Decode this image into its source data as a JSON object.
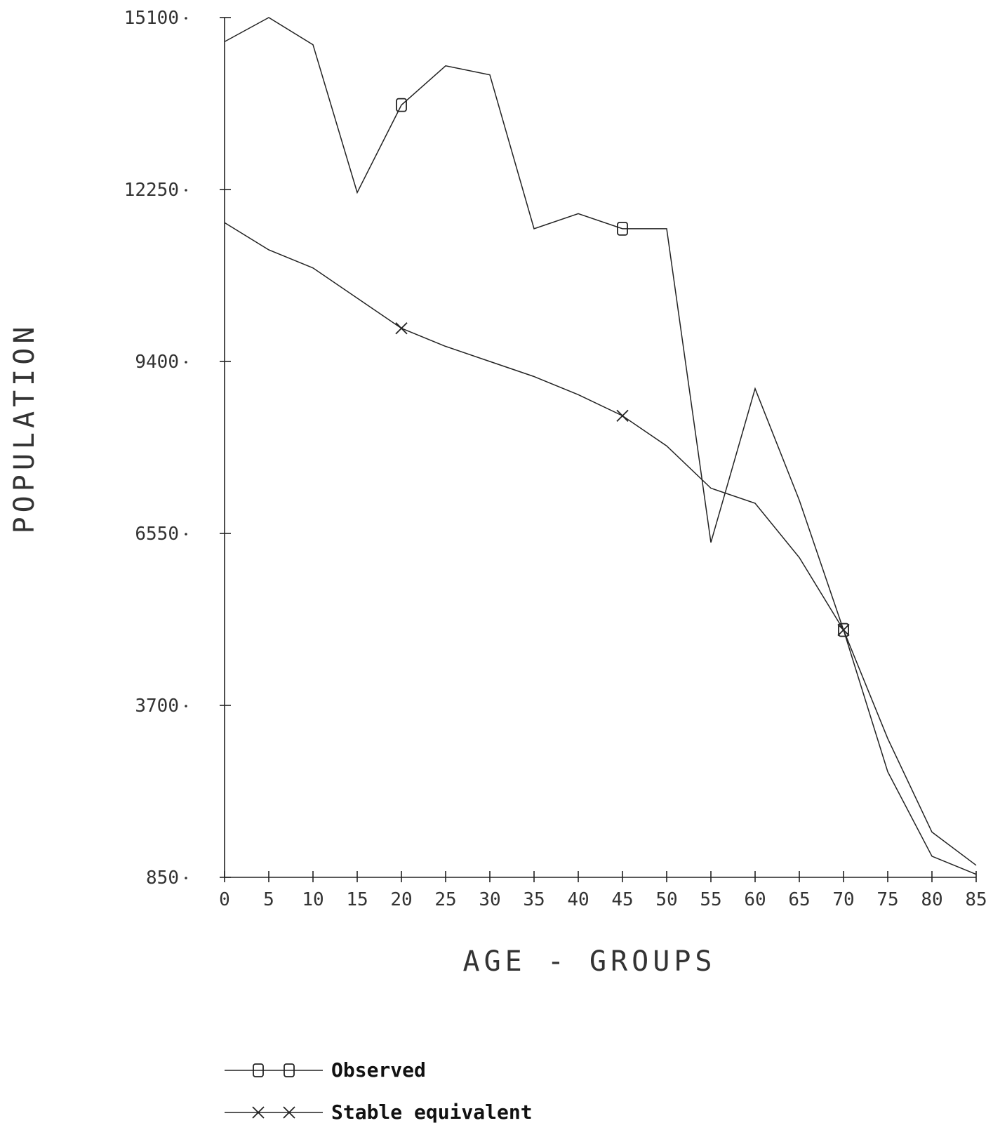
{
  "chart_data": {
    "type": "line",
    "title": "",
    "xlabel": "AGE - GROUPS",
    "ylabel": "POPULATION",
    "x": [
      0,
      5,
      10,
      15,
      20,
      25,
      30,
      35,
      40,
      45,
      50,
      55,
      60,
      65,
      70,
      75,
      80,
      85
    ],
    "x_ticks": [
      "0",
      "5",
      "10",
      "15",
      "20",
      "25",
      "30",
      "35",
      "40",
      "45",
      "50",
      "55",
      "60",
      "65",
      "70",
      "75",
      "80",
      "85"
    ],
    "y_ticks": [
      "15100",
      "12250",
      "9400",
      "6550",
      "3700",
      "850"
    ],
    "xlim": [
      0,
      85
    ],
    "ylim": [
      850,
      15100
    ],
    "grid": false,
    "legend_position": "bottom-left",
    "series": [
      {
        "name": "Observed",
        "marker": "square",
        "marker_at": [
          20,
          45,
          70
        ],
        "values": [
          14700,
          15100,
          14650,
          12200,
          13650,
          14300,
          14150,
          11600,
          11850,
          11600,
          11600,
          6400,
          8950,
          7100,
          4950,
          2600,
          1200,
          900
        ]
      },
      {
        "name": "Stable equivalent",
        "marker": "x",
        "marker_at": [
          20,
          45,
          70
        ],
        "values": [
          11700,
          11250,
          10950,
          10450,
          9950,
          9650,
          9400,
          9150,
          8850,
          8500,
          8000,
          7300,
          7050,
          6150,
          4950,
          3150,
          1600,
          1050
        ]
      }
    ]
  }
}
